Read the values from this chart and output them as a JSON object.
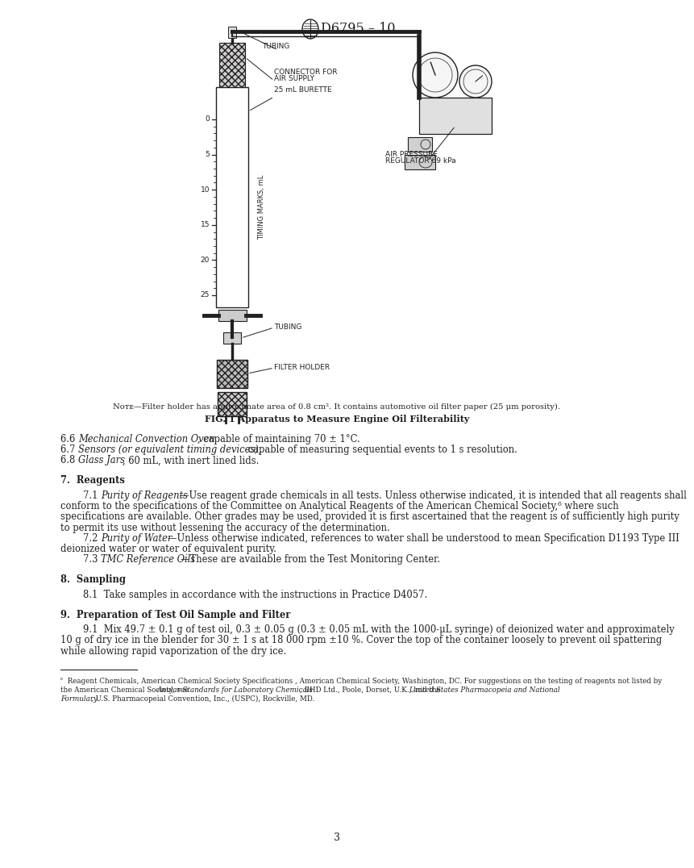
{
  "page_number": "3",
  "header_text": "D6795 – 10",
  "background_color": "#ffffff",
  "text_color": "#231f20",
  "fig_note": "Nᴏᴛᴇ—Filter holder has approximate area of 0.8 cm². It contains automotive oil filter paper (25 μm porosity).",
  "fig_title": "FIG. 1 Apparatus to Measure Engine Oil Filterability",
  "label_tubing_top": "TUBING",
  "label_connector": "CONNECTOR FOR\nAIR SUPPLY",
  "label_burette": "25 mL BURETTE",
  "label_air_pressure": "AIR PRESSURE\nREGULATOR 69 kPa",
  "label_tubing_bot": "TUBING",
  "label_filter": "FILTER HOLDER",
  "grad_labels": [
    "0",
    "5",
    "10",
    "15",
    "20",
    "25"
  ],
  "timing_label": "TIMING MARKS, mL",
  "s66_pre": "6.6  ",
  "s66_italic": "Mechanical Convection Oven",
  "s66_post": ", capable of maintaining 70 ± 1°C.",
  "s67_pre": "6.7  ",
  "s67_italic": "Sensors (or equivalent timing devices),",
  "s67_post": " capable of measuring sequential events to 1 s resolution.",
  "s68_pre": "6.8  ",
  "s68_italic": "Glass Jars",
  "s68_post": ", 60 mL, with inert lined lids.",
  "s7_head": "7.  Reagents",
  "s71_pre": "7.1  ",
  "s71_italic": "Purity of Reagents",
  "s71_post": "—Use reagent grade chemicals in all tests. Unless otherwise indicated, it is intended that all reagents shall",
  "s71_l2": "conform to the specifications of the Committee on Analytical Reagents of the American Chemical Society,⁶ where such",
  "s71_l3": "specifications are available. Other grades may be used, provided it is first ascertained that the reagent is of sufficiently high purity",
  "s71_l4": "to permit its use without lessening the accuracy of the determination.",
  "s72_pre": "7.2  ",
  "s72_italic": "Purity of Water",
  "s72_post": "—Unless otherwise indicated, references to water shall be understood to mean Specification D1193 Type III",
  "s72_l2": "deionized water or water of equivalent purity.",
  "s73_pre": "7.3  ",
  "s73_italic": "TMC Reference Oils",
  "s73_post": "—These are available from the Test Monitoring Center.",
  "s8_head": "8.  Sampling",
  "s81": "8.1  Take samples in accordance with the instructions in Practice D4057.",
  "s9_head": "9.  Preparation of Test Oil Sample and Filter",
  "s91_pre": "9.1  Mix 49.7 ± 0.1 g of test oil, 0.3 ± 0.05 g (0.3 ± 0.05 mL with the 1000-μL syringe) of deionized water and approximately",
  "s91_l2": "10 g of dry ice in the blender for 30 ± 1 s at 18 000 rpm ±10 %. Cover the top of the container loosely to prevent oil spattering",
  "s91_l3": "while allowing rapid vaporization of the dry ice.",
  "fn_sup": "⁶",
  "fn_l1": " Reagent Chemicals, American Chemical Society Specifications , American Chemical Society, Washington, DC. For suggestions on the testing of reagents not listed by",
  "fn_l2_a": "the American Chemical Society, see ",
  "fn_l2_b_italic": "Anular Standards for Laboratory Chemicals",
  "fn_l2_c": ", BHD Ltd., Poole, Dorset, U.K., and the ",
  "fn_l2_d_italic": "United States Pharmacopeia and National",
  "fn_l3_a_italic": "Formulary",
  "fn_l3_b": ", U.S. Pharmacopeial Convention, Inc., (USPC), Rockville, MD."
}
